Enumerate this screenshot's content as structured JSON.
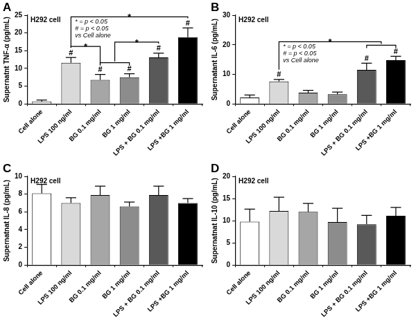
{
  "chart_data": [
    {
      "type": "bar",
      "panel_label": "A",
      "subtitle": "H292 cell",
      "y_label": "Supernatnt TNF-α (pg/mL)",
      "categories": [
        "Cell alone",
        "LPS 100 ng/ml",
        "BG 0.1 mg/ml",
        "BG 1 mg/ml",
        "LPS + BG 0.1 mg/ml",
        "LPS +BG 1 mg/ml"
      ],
      "values": [
        0.7,
        11.6,
        6.8,
        7.5,
        13.1,
        18.8
      ],
      "errors": [
        0.4,
        1.5,
        1.5,
        1.0,
        1.2,
        2.6
      ],
      "colors": [
        "#ffffff",
        "#d9d9d9",
        "#a6a6a6",
        "#8c8c8c",
        "#595959",
        "#000000"
      ],
      "ylim": [
        0,
        25
      ],
      "yticks": [
        0,
        5,
        10,
        15,
        20,
        25
      ],
      "grid": false,
      "significance": {
        "key": [
          "* = p < 0.05",
          "# = p < 0.05",
          "vs Cell alone"
        ],
        "hash_marks": {
          "label": "#",
          "categories": [
            "LPS 100 ng/ml",
            "BG 0.1 mg/ml",
            "BG 1 mg/ml",
            "LPS + BG 0.1 mg/ml",
            "LPS +BG 1 mg/ml"
          ]
        },
        "brackets": [
          {
            "left": [
              "LPS 100 ng/ml"
            ],
            "right": [
              "BG 0.1 mg/ml"
            ],
            "label": "*"
          },
          {
            "left": [
              "BG 0.1 mg/ml",
              "BG 1 mg/ml"
            ],
            "right": [
              "LPS + BG 0.1 mg/ml"
            ],
            "label": "*"
          },
          {
            "left": [
              "LPS 100 ng/ml"
            ],
            "right": [
              "LPS +BG 1 mg/ml"
            ],
            "label": "*"
          }
        ]
      }
    },
    {
      "type": "bar",
      "panel_label": "B",
      "subtitle": "H292 cell",
      "y_label": "Supernatant IL-6 (pg/mL)",
      "categories": [
        "Cell alone",
        "LPS 100 ng/ml",
        "BG 0.1 mg/ml",
        "BG 1 mg/ml",
        "LPS + BG 0.1 mg/ml",
        "LPS +BG 1 mg/ml"
      ],
      "values": [
        2.2,
        7.6,
        3.8,
        3.3,
        11.5,
        14.8
      ],
      "errors": [
        0.8,
        0.7,
        0.8,
        0.7,
        2.3,
        1.3
      ],
      "colors": [
        "#ffffff",
        "#d9d9d9",
        "#a6a6a6",
        "#8c8c8c",
        "#595959",
        "#000000"
      ],
      "ylim": [
        0,
        30
      ],
      "yticks": [
        0,
        10,
        20,
        30
      ],
      "grid": false,
      "significance": {
        "key": [
          "* = p < 0.05",
          "# = p < 0.05",
          "vs Cell alone"
        ],
        "hash_marks": {
          "label": "#",
          "categories": [
            "LPS 100 ng/ml",
            "LPS + BG 0.1 mg/ml",
            "LPS +BG 1 mg/ml"
          ]
        },
        "brackets": [
          {
            "left": [
              "LPS 100 ng/ml"
            ],
            "right": [
              "LPS + BG 0.1 mg/ml",
              "LPS +BG 1 mg/ml"
            ],
            "label": "*"
          }
        ]
      }
    },
    {
      "type": "bar",
      "panel_label": "C",
      "subtitle": "H292 cell",
      "y_label": "Supernatnat IL-8 (pg/mL)",
      "categories": [
        "Cell alone",
        "LPS 100 ng/ml",
        "BG 0.1 mg/ml",
        "BG 1 mg/ml",
        "LPS + BG 0.1 mg/ml",
        "LPS +BG 1 mg/ml"
      ],
      "values": [
        8.1,
        7.0,
        7.9,
        6.6,
        7.9,
        7.0
      ],
      "errors": [
        1.0,
        0.6,
        1.0,
        0.5,
        1.0,
        0.5
      ],
      "colors": [
        "#ffffff",
        "#d9d9d9",
        "#a6a6a6",
        "#8c8c8c",
        "#595959",
        "#000000"
      ],
      "ylim": [
        0,
        10
      ],
      "yticks": [
        0,
        2,
        4,
        6,
        8,
        10
      ],
      "grid": false
    },
    {
      "type": "bar",
      "panel_label": "D",
      "subtitle": "H292 cell",
      "y_label": "Supernatnat IL-10 (pg/mL)",
      "categories": [
        "Cell alone",
        "LPS 100 ng/ml",
        "BG 0.1 mg/ml",
        "BG 1 mg/ml",
        "LPS + BG 0.1 mg/ml",
        "LPS +BG 1 mg/ml"
      ],
      "values": [
        9.8,
        12.2,
        12.0,
        9.7,
        9.2,
        11.1
      ],
      "errors": [
        2.8,
        3.1,
        1.9,
        3.1,
        2.0,
        1.9
      ],
      "colors": [
        "#ffffff",
        "#d9d9d9",
        "#a6a6a6",
        "#8c8c8c",
        "#595959",
        "#000000"
      ],
      "ylim": [
        0,
        20
      ],
      "yticks": [
        0,
        5,
        10,
        15,
        20
      ],
      "grid": false
    }
  ]
}
